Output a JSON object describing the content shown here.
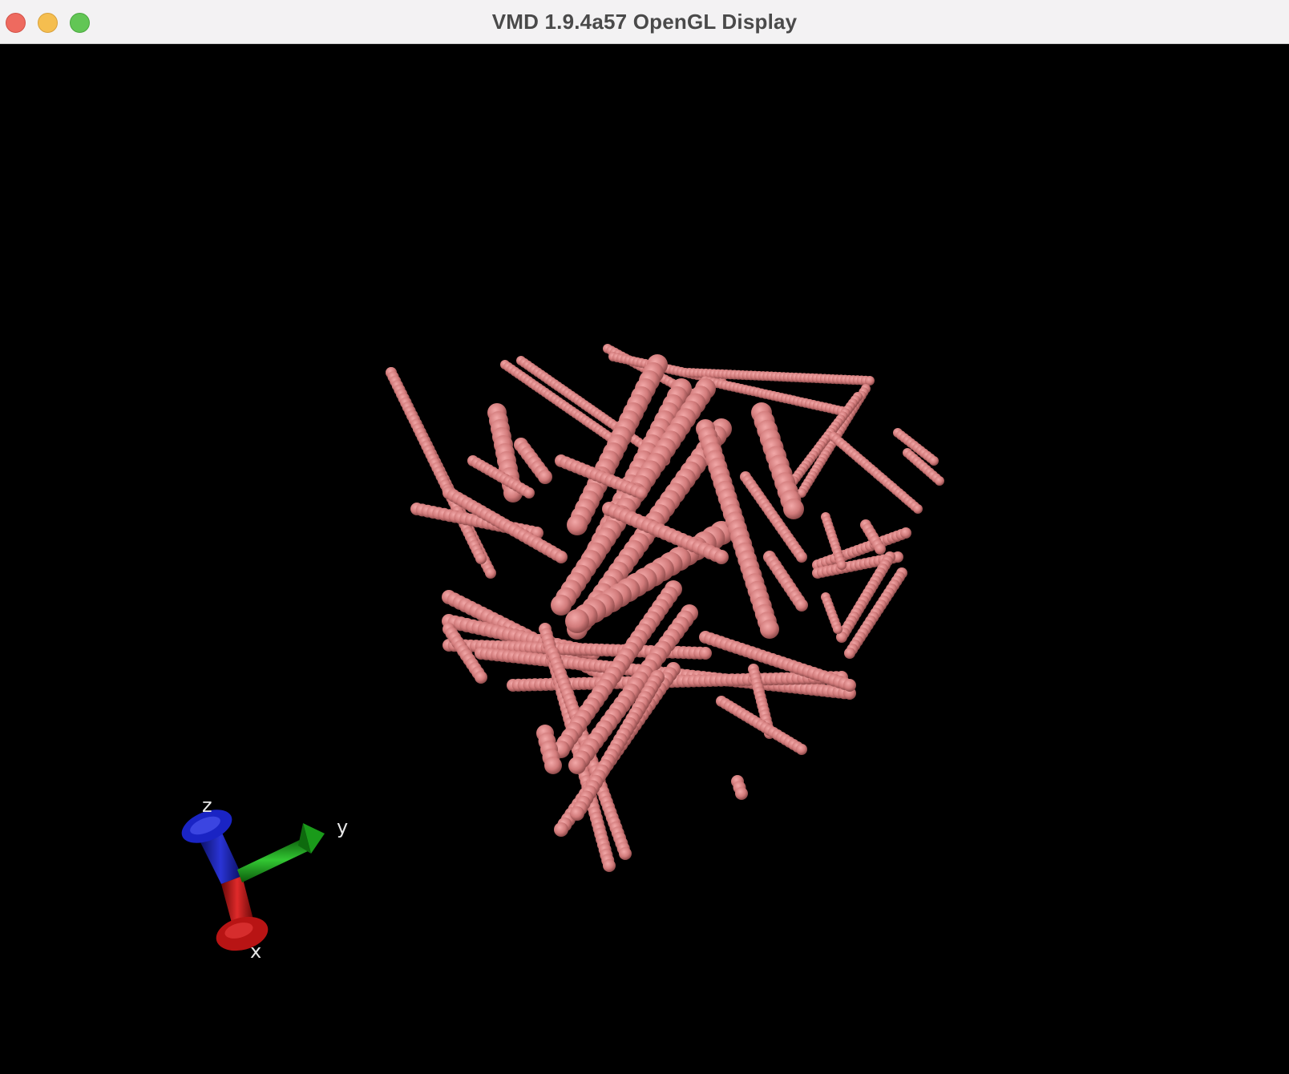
{
  "window": {
    "title": "VMD 1.9.4a57 OpenGL Display"
  },
  "molecule": {
    "representation": "vdw-spheres",
    "color": "#d27b7b"
  },
  "axes_indicator": {
    "x_label": "x",
    "y_label": "y",
    "z_label": "z",
    "x_color": "#c31616",
    "y_color": "#1a9a1a",
    "z_color": "#1520b0"
  }
}
